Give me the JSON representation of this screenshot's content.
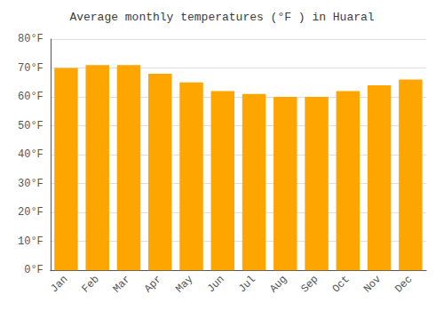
{
  "chart_data": {
    "type": "bar",
    "title": "Average monthly temperatures (°F ) in Huaral",
    "categories": [
      "Jan",
      "Feb",
      "Mar",
      "Apr",
      "May",
      "Jun",
      "Jul",
      "Aug",
      "Sep",
      "Oct",
      "Nov",
      "Dec"
    ],
    "values": [
      70,
      71,
      71,
      68,
      65,
      62,
      61,
      60,
      60,
      62,
      64,
      66
    ],
    "color": "#FFA500",
    "ylim": [
      0,
      80
    ],
    "yticks": [
      {
        "value": 0,
        "label": "0°F"
      },
      {
        "value": 10,
        "label": "10°F"
      },
      {
        "value": 20,
        "label": "20°F"
      },
      {
        "value": 30,
        "label": "30°F"
      },
      {
        "value": 40,
        "label": "40°F"
      },
      {
        "value": 50,
        "label": "50°F"
      },
      {
        "value": 60,
        "label": "60°F"
      },
      {
        "value": 70,
        "label": "70°F"
      },
      {
        "value": 80,
        "label": "80°F"
      }
    ],
    "grid": true
  }
}
